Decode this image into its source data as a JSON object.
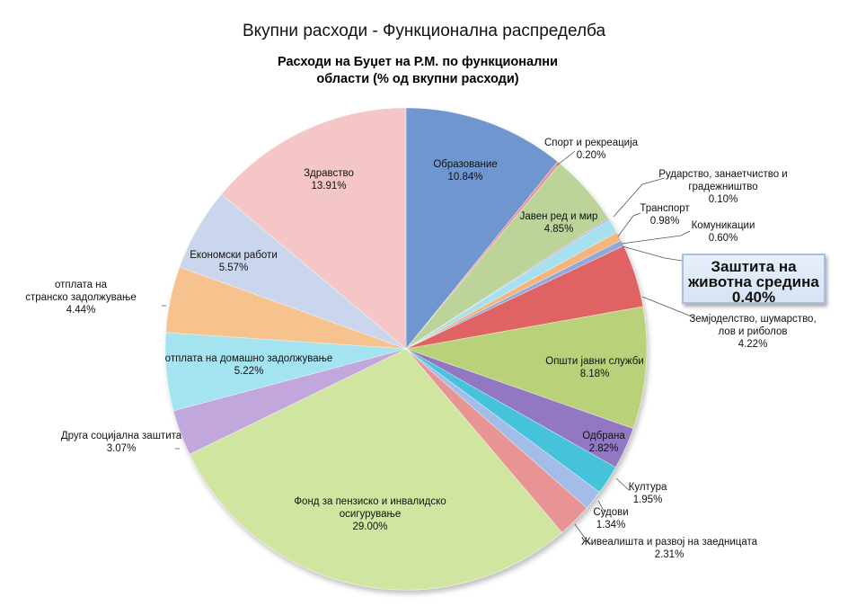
{
  "page_title": "Вкупни расходи - Функционална распределба",
  "chart_data": {
    "type": "pie",
    "title": "Расходи на Буџет на Р.М. по функционални области (% од вкупни расходи)",
    "title_lines": [
      "Расходи на Буџет на Р.М. по функционални",
      "области (% од вкупни расходи)"
    ],
    "unit": "%",
    "start": "12 o'clock, clockwise",
    "slices": [
      {
        "label": "Образование",
        "lines": [
          "Образование"
        ],
        "value": 10.84,
        "value_text": "10.84%",
        "color": "#7096cf"
      },
      {
        "label": "Спорт и рекреација",
        "lines": [
          "Спорт и рекреација"
        ],
        "value": 0.2,
        "value_text": "0.20%",
        "color": "#ec8f8f"
      },
      {
        "label": "Јавен ред и мир",
        "lines": [
          "Јавен ред и мир"
        ],
        "value": 4.85,
        "value_text": "4.85%",
        "color": "#bcd49a"
      },
      {
        "label": "Рударство, занаетчиство и градежништво",
        "lines": [
          "Рударство, занаетчиство и",
          "градежништво"
        ],
        "value": 0.1,
        "value_text": "0.10%",
        "color": "#b39ad6"
      },
      {
        "label": "Транспорт",
        "lines": [
          "Транспорт"
        ],
        "value": 0.98,
        "value_text": "0.98%",
        "color": "#a7e0ee"
      },
      {
        "label": "Комуникации",
        "lines": [
          "Комуникации"
        ],
        "value": 0.6,
        "value_text": "0.60%",
        "color": "#f5b47a"
      },
      {
        "label": "Заштита на животна средина",
        "lines": [
          "Заштита на",
          "животна средина"
        ],
        "value": 0.4,
        "value_text": "0.40%",
        "color": "#8fa9dc"
      },
      {
        "label": "Земјоделство, шумарство, лов и риболов",
        "lines": [
          "Земјоделство, шумарство,",
          "лов и риболов"
        ],
        "value": 4.22,
        "value_text": "4.22%",
        "color": "#e06363"
      },
      {
        "label": "Општи јавни служби",
        "lines": [
          "Општи јавни служби"
        ],
        "value": 8.18,
        "value_text": "8.18%",
        "color": "#b9d27a"
      },
      {
        "label": "Одбрана",
        "lines": [
          "Одбрана"
        ],
        "value": 2.82,
        "value_text": "2.82%",
        "color": "#9278c2"
      },
      {
        "label": "Култура",
        "lines": [
          "Култура"
        ],
        "value": 1.95,
        "value_text": "1.95%",
        "color": "#45c3da"
      },
      {
        "label": "Судови",
        "lines": [
          "Судови"
        ],
        "value": 1.34,
        "value_text": "1.34%",
        "color": "#a3bce8"
      },
      {
        "label": "Живеалишта и развој на заедницата",
        "lines": [
          "Живеалишта и развој на заедницата"
        ],
        "value": 2.31,
        "value_text": "2.31%",
        "color": "#e89494"
      },
      {
        "label": "Фонд за пензиско и инвалидско осигурување",
        "lines": [
          "Фонд за пензиско и инвалидско",
          "осигурување"
        ],
        "value": 29.0,
        "value_text": "29.00%",
        "color": "#d0e5a0"
      },
      {
        "label": "Друга социјална заштита",
        "lines": [
          "Друга социјална заштита"
        ],
        "value": 3.07,
        "value_text": "3.07%",
        "color": "#c1a7dc"
      },
      {
        "label": "отплата на домашно задолжување",
        "lines": [
          "отплата на домашно задолжување"
        ],
        "value": 5.22,
        "value_text": "5.22%",
        "color": "#a4e3f0"
      },
      {
        "label": "отплата на странско задолжување",
        "lines": [
          "отплата на",
          "странско задолжување"
        ],
        "value": 4.44,
        "value_text": "4.44%",
        "color": "#f6c38f"
      },
      {
        "label": "Економски работи",
        "lines": [
          "Економски работи"
        ],
        "value": 5.57,
        "value_text": "5.57%",
        "color": "#cad6ee"
      },
      {
        "label": "Здравство",
        "lines": [
          "Здравство"
        ],
        "value": 13.91,
        "value_text": "13.91%",
        "color": "#f4c6c6"
      }
    ],
    "callout": {
      "lines": [
        "Заштита на",
        "животна средина"
      ],
      "value_text": "0.40%"
    }
  }
}
